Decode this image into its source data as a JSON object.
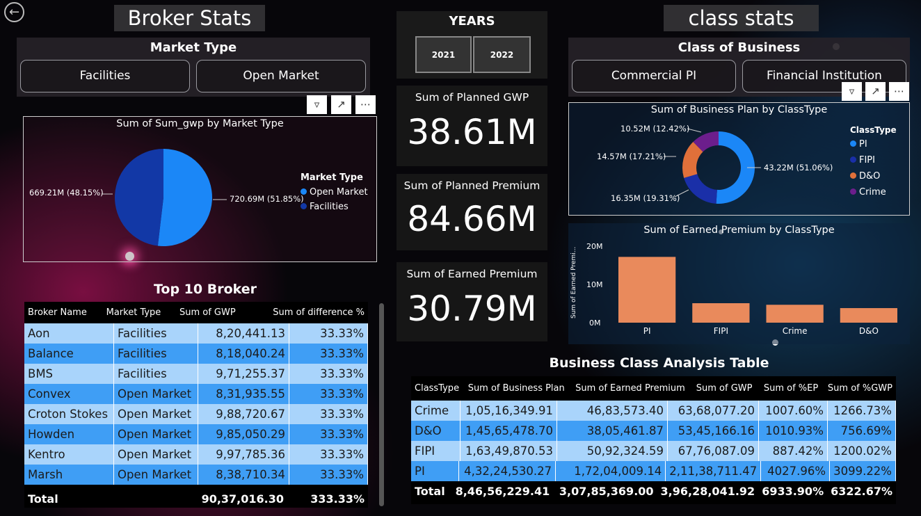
{
  "nav": {
    "back_icon": "back-arrow-icon"
  },
  "broker_title": "Broker Stats",
  "class_title": "class stats",
  "market_type": {
    "title": "Market Type",
    "options": [
      "Facilities",
      "Open Market"
    ]
  },
  "years": {
    "title": "YEARS",
    "options": [
      "2021",
      "2022"
    ]
  },
  "class_business": {
    "title": "Class of Business",
    "options": [
      "Commercial PI",
      "Financial Institution"
    ]
  },
  "visual_actions": {
    "filter_icon": "filter-icon",
    "focus_icon": "focus-mode-icon",
    "more_icon": "more-options-icon"
  },
  "kpis": [
    {
      "label": "Sum of Planned GWP",
      "value": "38.61M"
    },
    {
      "label": "Sum of Planned Premium",
      "value": "84.66M"
    },
    {
      "label": "Sum of Earned Premium",
      "value": "30.79M"
    }
  ],
  "pie_market": {
    "title": "Sum of Sum_gwp by Market Type",
    "legend_title": "Market Type",
    "legend": [
      "Open Market",
      "Facilities"
    ],
    "labels": [
      "720.69M (51.85%)",
      "669.21M (48.15%)"
    ]
  },
  "donut_class": {
    "title": "Sum of Business Plan by ClassType",
    "legend_title": "ClassType",
    "legend": [
      "PI",
      "FIPI",
      "D&O",
      "Crime"
    ],
    "labels": [
      "43.22M (51.06%)",
      "16.35M (19.31%)",
      "14.57M (17.21%)",
      "10.52M (12.42%)"
    ]
  },
  "bar_earned": {
    "title": "Sum of Earned Premium by ClassType",
    "ylabel": "Sum of Earned Premi...",
    "ticks": [
      "20M",
      "10M",
      "0M"
    ],
    "categories": [
      "PI",
      "FIPI",
      "Crime",
      "D&O"
    ]
  },
  "top_broker": {
    "title": "Top 10 Broker",
    "columns": [
      "Broker Name",
      "Market Type",
      "Sum of GWP",
      "Sum of difference %"
    ],
    "rows": [
      [
        "Aon",
        "Facilities",
        "8,20,441.13",
        "33.33%"
      ],
      [
        "Balance",
        "Facilities",
        "8,18,040.24",
        "33.33%"
      ],
      [
        "BMS",
        "Facilities",
        "9,71,255.37",
        "33.33%"
      ],
      [
        "Convex",
        "Open Market",
        "8,31,935.55",
        "33.33%"
      ],
      [
        "Croton Stokes",
        "Open Market",
        "9,88,720.67",
        "33.33%"
      ],
      [
        "Howden",
        "Open Market",
        "9,85,050.29",
        "33.33%"
      ],
      [
        "Kentro",
        "Open Market",
        "9,97,785.36",
        "33.33%"
      ],
      [
        "Marsh",
        "Open Market",
        "8,38,710.34",
        "33.33%"
      ]
    ],
    "total": [
      "Total",
      "",
      "90,37,016.30",
      "333.33%"
    ]
  },
  "class_table": {
    "title": "Business Class Analysis Table",
    "columns": [
      "ClassType",
      "Sum of Business Plan",
      "Sum of Earned Premium",
      "Sum of GWP",
      "Sum of %EP",
      "Sum of %GWP"
    ],
    "rows": [
      [
        "Crime",
        "1,05,16,349.91",
        "46,83,573.40",
        "63,68,077.20",
        "1007.60%",
        "1266.73%"
      ],
      [
        "D&O",
        "1,45,65,478.70",
        "38,05,461.87",
        "53,45,166.16",
        "1010.93%",
        "756.69%"
      ],
      [
        "FIPI",
        "1,63,49,870.53",
        "50,92,324.59",
        "67,76,087.09",
        "887.42%",
        "1200.02%"
      ],
      [
        "PI",
        "4,32,24,530.27",
        "1,72,04,009.14",
        "2,11,38,711.47",
        "4027.96%",
        "3099.22%"
      ]
    ],
    "total": [
      "Total",
      "8,46,56,229.41",
      "3,07,85,369.00",
      "3,96,28,041.92",
      "6933.90%",
      "6322.67%"
    ]
  },
  "chart_data": [
    {
      "type": "pie",
      "title": "Sum of Sum_gwp by Market Type",
      "categories": [
        "Open Market",
        "Facilities"
      ],
      "values": [
        720.69,
        669.21
      ],
      "colors": [
        "#1b87f7",
        "#1238a6"
      ],
      "legend": "right"
    },
    {
      "type": "pie",
      "title": "Sum of Business Plan by ClassType",
      "categories": [
        "PI",
        "FIPI",
        "D&O",
        "Crime"
      ],
      "values": [
        43.22,
        16.35,
        14.57,
        10.52
      ],
      "colors": [
        "#1b87f7",
        "#1a2fa8",
        "#e0703a",
        "#6c1e8c"
      ],
      "legend": "right"
    },
    {
      "type": "bar",
      "title": "Sum of Earned Premium by ClassType",
      "categories": [
        "PI",
        "FIPI",
        "Crime",
        "D&O"
      ],
      "values": [
        17.2,
        5.09,
        4.68,
        3.81
      ],
      "ylim": [
        0,
        20
      ],
      "ylabel": "Sum of Earned Premi...",
      "color": "#e98a5c"
    }
  ]
}
